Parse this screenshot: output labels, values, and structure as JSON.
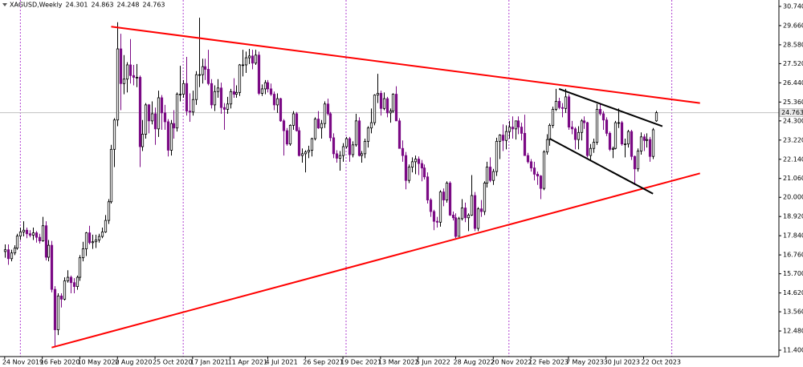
{
  "chart_data": {
    "type": "candlestick",
    "title": "XAGUSD,Weekly",
    "up_color": "#ffffff",
    "down_color": "#7b0a85",
    "outline_color": "#000000",
    "separator_color": "#b040d0",
    "price_line_color": "#c0c0c0",
    "xlim": [
      -1.5,
      247.2
    ],
    "ylim": [
      11.04,
      31.01
    ],
    "yticks": [
      {
        "value": 30.74,
        "label": "30.740"
      },
      {
        "value": 29.66,
        "label": "29.660"
      },
      {
        "value": 28.58,
        "label": "28.580"
      },
      {
        "value": 27.52,
        "label": "27.520"
      },
      {
        "value": 26.44,
        "label": "26.440"
      },
      {
        "value": 25.36,
        "label": "25.360"
      },
      {
        "value": 24.3,
        "label": "24.300"
      },
      {
        "value": 23.22,
        "label": "23.220"
      },
      {
        "value": 22.14,
        "label": "22.140"
      },
      {
        "value": 21.06,
        "label": "21.060"
      },
      {
        "value": 20,
        "label": "20.000"
      },
      {
        "value": 18.92,
        "label": "18.920"
      },
      {
        "value": 17.84,
        "label": "17.840"
      },
      {
        "value": 16.76,
        "label": "16.760"
      },
      {
        "value": 15.7,
        "label": "15.700"
      },
      {
        "value": 14.62,
        "label": "14.620"
      },
      {
        "value": 13.56,
        "label": "13.560"
      },
      {
        "value": 12.48,
        "label": "12.480"
      },
      {
        "value": 11.4,
        "label": "11.400"
      }
    ],
    "xticks": [
      {
        "value": 0,
        "label": "24 Nov 2019"
      },
      {
        "value": 12,
        "label": "16 Feb 2020"
      },
      {
        "value": 24,
        "label": "10 May 2020"
      },
      {
        "value": 36,
        "label": "2 Aug 2020"
      },
      {
        "value": 48,
        "label": "25 Oct 2020"
      },
      {
        "value": 60,
        "label": "17 Jan 2021"
      },
      {
        "value": 72,
        "label": "11 Apr 2021"
      },
      {
        "value": 84,
        "label": "4 Jul 2021"
      },
      {
        "value": 96,
        "label": "26 Sep 2021"
      },
      {
        "value": 108,
        "label": "19 Dec 2021"
      },
      {
        "value": 120,
        "label": "13 Mar 2022"
      },
      {
        "value": 132,
        "label": "5 Jun 2022"
      },
      {
        "value": 144,
        "label": "28 Aug 2022"
      },
      {
        "value": 156,
        "label": "20 Nov 2022"
      },
      {
        "value": 168,
        "label": "12 Feb 2023"
      },
      {
        "value": 180,
        "label": "7 May 2023"
      },
      {
        "value": 192,
        "label": "30 Jul 2023"
      },
      {
        "value": 204,
        "label": "22 Oct 2023"
      }
    ],
    "separators": [
      5,
      57,
      109,
      161,
      213
    ],
    "trendlines": [
      {
        "color": "#ff0000",
        "points": [
          [
            34,
            29.6
          ],
          [
            222,
            25.3
          ]
        ]
      },
      {
        "color": "#ff0000",
        "points": [
          [
            15,
            11.55
          ],
          [
            222,
            21.35
          ]
        ]
      },
      {
        "color": "#000000",
        "points": [
          [
            177,
            26.1
          ],
          [
            210,
            24.0
          ]
        ]
      },
      {
        "color": "#000000",
        "points": [
          [
            174,
            23.3
          ],
          [
            207,
            20.2
          ]
        ]
      }
    ],
    "ohlc": [
      [
        16.95,
        17.35,
        16.6,
        17.05
      ],
      [
        17.05,
        17.35,
        16.2,
        16.55
      ],
      [
        16.55,
        17.05,
        16.4,
        16.87
      ],
      [
        16.87,
        17.3,
        16.75,
        17.14
      ],
      [
        17.14,
        17.95,
        17.05,
        17.82
      ],
      [
        17.82,
        18.3,
        17.6,
        18.05
      ],
      [
        18.05,
        18.65,
        17.8,
        18.15
      ],
      [
        18.15,
        18.3,
        17.7,
        17.95
      ],
      [
        17.95,
        18.15,
        17.75,
        17.87
      ],
      [
        17.87,
        18.3,
        17.6,
        18.0
      ],
      [
        18.0,
        18.1,
        17.45,
        17.75
      ],
      [
        17.75,
        17.95,
        17.4,
        17.55
      ],
      [
        17.55,
        18.9,
        17.5,
        18.4
      ],
      [
        18.4,
        18.65,
        16.45,
        16.63
      ],
      [
        16.63,
        17.6,
        16.4,
        17.3
      ],
      [
        17.3,
        17.55,
        14.65,
        14.82
      ],
      [
        14.82,
        15.0,
        11.64,
        12.55
      ],
      [
        12.55,
        14.6,
        12.25,
        14.45
      ],
      [
        14.45,
        14.6,
        13.8,
        14.27
      ],
      [
        14.27,
        15.5,
        14.2,
        15.3
      ],
      [
        15.3,
        15.9,
        15.2,
        15.5
      ],
      [
        15.5,
        15.6,
        14.6,
        15.2
      ],
      [
        15.2,
        15.45,
        14.6,
        14.98
      ],
      [
        14.98,
        15.6,
        14.8,
        15.5
      ],
      [
        15.5,
        16.75,
        15.3,
        16.6
      ],
      [
        16.6,
        17.5,
        16.4,
        17.1
      ],
      [
        17.1,
        18.05,
        16.7,
        18.0
      ],
      [
        18.0,
        18.4,
        17.35,
        17.45
      ],
      [
        17.45,
        17.9,
        17.1,
        17.5
      ],
      [
        17.5,
        17.9,
        17.15,
        17.6
      ],
      [
        17.6,
        17.95,
        17.45,
        17.8
      ],
      [
        17.8,
        18.3,
        17.7,
        18.05
      ],
      [
        18.05,
        19.0,
        18.0,
        18.7
      ],
      [
        18.7,
        19.9,
        18.5,
        19.75
      ],
      [
        19.75,
        22.95,
        19.65,
        22.7
      ],
      [
        22.7,
        24.45,
        21.7,
        24.35
      ],
      [
        24.35,
        29.85,
        24.0,
        28.35
      ],
      [
        28.35,
        29.2,
        24.9,
        26.4
      ],
      [
        26.4,
        28.0,
        25.8,
        26.65
      ],
      [
        26.65,
        27.6,
        25.9,
        27.45
      ],
      [
        27.45,
        28.9,
        26.4,
        26.85
      ],
      [
        26.85,
        27.45,
        26.3,
        26.75
      ],
      [
        26.75,
        27.5,
        26.2,
        26.75
      ],
      [
        26.75,
        26.85,
        21.7,
        22.85
      ],
      [
        22.85,
        24.35,
        22.6,
        23.55
      ],
      [
        23.55,
        25.3,
        23.3,
        25.2
      ],
      [
        25.2,
        25.25,
        23.6,
        24.3
      ],
      [
        24.3,
        25.4,
        24.1,
        24.7
      ],
      [
        24.7,
        25.05,
        22.95,
        23.85
      ],
      [
        23.85,
        26.0,
        23.4,
        25.6
      ],
      [
        25.6,
        25.75,
        23.8,
        24.75
      ],
      [
        24.75,
        25.2,
        23.8,
        24.25
      ],
      [
        24.25,
        24.4,
        22.3,
        22.65
      ],
      [
        22.65,
        24.35,
        22.35,
        24.15
      ],
      [
        24.15,
        24.9,
        23.3,
        23.9
      ],
      [
        23.9,
        25.9,
        23.7,
        25.8
      ],
      [
        25.8,
        27.4,
        25.4,
        25.8
      ],
      [
        25.8,
        26.6,
        25.6,
        26.4
      ],
      [
        26.4,
        27.9,
        24.6,
        24.85
      ],
      [
        24.85,
        25.85,
        24.25,
        24.8
      ],
      [
        24.8,
        26.0,
        24.6,
        25.5
      ],
      [
        25.5,
        27.1,
        25.2,
        26.9
      ],
      [
        26.9,
        30.1,
        26.2,
        26.9
      ],
      [
        26.9,
        27.8,
        26.4,
        27.35
      ],
      [
        27.35,
        27.8,
        26.6,
        27.2
      ],
      [
        27.2,
        28.3,
        26.3,
        26.4
      ],
      [
        26.4,
        26.65,
        25.0,
        25.2
      ],
      [
        25.2,
        26.3,
        24.85,
        25.95
      ],
      [
        25.95,
        26.65,
        25.6,
        26.15
      ],
      [
        26.15,
        26.45,
        24.7,
        25.05
      ],
      [
        25.05,
        25.3,
        23.8,
        24.95
      ],
      [
        24.95,
        25.65,
        24.7,
        25.25
      ],
      [
        25.25,
        26.1,
        25.0,
        25.95
      ],
      [
        25.95,
        26.7,
        25.6,
        25.8
      ],
      [
        25.8,
        26.3,
        25.6,
        25.9
      ],
      [
        25.9,
        27.5,
        25.7,
        27.45
      ],
      [
        27.45,
        28.3,
        26.8,
        27.45
      ],
      [
        27.45,
        28.2,
        27.0,
        27.85
      ],
      [
        27.85,
        28.35,
        27.5,
        27.95
      ],
      [
        27.95,
        28.3,
        27.2,
        27.55
      ],
      [
        27.55,
        28.3,
        27.45,
        28.0
      ],
      [
        28.0,
        28.2,
        25.75,
        25.85
      ],
      [
        25.85,
        26.35,
        25.7,
        26.1
      ],
      [
        26.1,
        26.6,
        25.8,
        26.45
      ],
      [
        26.45,
        26.6,
        25.9,
        26.1
      ],
      [
        26.1,
        26.4,
        25.7,
        25.8
      ],
      [
        25.8,
        25.95,
        24.9,
        25.2
      ],
      [
        25.2,
        25.85,
        24.75,
        25.55
      ],
      [
        25.55,
        25.6,
        24.25,
        24.3
      ],
      [
        24.3,
        24.4,
        22.35,
        23.75
      ],
      [
        23.75,
        23.9,
        22.9,
        23.0
      ],
      [
        23.0,
        24.1,
        22.9,
        24.05
      ],
      [
        24.05,
        24.85,
        23.8,
        24.7
      ],
      [
        24.7,
        24.8,
        23.7,
        23.75
      ],
      [
        23.75,
        23.95,
        22.3,
        22.35
      ],
      [
        22.35,
        22.75,
        21.95,
        22.45
      ],
      [
        22.45,
        22.65,
        21.4,
        22.55
      ],
      [
        22.55,
        22.9,
        22.2,
        22.65
      ],
      [
        22.65,
        23.35,
        22.3,
        23.3
      ],
      [
        23.3,
        24.5,
        23.2,
        24.4
      ],
      [
        24.4,
        24.85,
        23.85,
        23.9
      ],
      [
        23.9,
        24.35,
        23.3,
        24.15
      ],
      [
        24.15,
        25.4,
        23.9,
        25.25
      ],
      [
        25.25,
        25.55,
        24.6,
        24.7
      ],
      [
        24.7,
        24.8,
        23.15,
        23.35
      ],
      [
        23.35,
        23.6,
        22.2,
        22.45
      ],
      [
        22.45,
        22.65,
        21.95,
        22.2
      ],
      [
        22.2,
        22.6,
        21.5,
        22.35
      ],
      [
        22.35,
        23.05,
        22.0,
        22.85
      ],
      [
        22.85,
        23.4,
        22.75,
        23.3
      ],
      [
        23.3,
        23.4,
        22.0,
        22.4
      ],
      [
        22.4,
        23.15,
        22.25,
        22.95
      ],
      [
        22.95,
        24.7,
        22.85,
        24.3
      ],
      [
        24.3,
        24.5,
        22.3,
        22.35
      ],
      [
        22.35,
        22.6,
        21.95,
        22.45
      ],
      [
        22.45,
        23.3,
        22.2,
        23.15
      ],
      [
        23.15,
        24.0,
        22.8,
        23.9
      ],
      [
        23.9,
        25.0,
        23.6,
        24.2
      ],
      [
        24.2,
        25.8,
        24.05,
        25.75
      ],
      [
        25.75,
        26.95,
        25.3,
        25.85
      ],
      [
        25.85,
        26.0,
        24.6,
        25.0
      ],
      [
        25.0,
        25.9,
        24.9,
        25.55
      ],
      [
        25.55,
        25.65,
        24.5,
        24.75
      ],
      [
        24.75,
        25.0,
        24.2,
        24.85
      ],
      [
        24.85,
        25.85,
        24.75,
        25.8
      ],
      [
        25.8,
        26.25,
        24.3,
        24.3
      ],
      [
        24.3,
        24.45,
        22.75,
        22.75
      ],
      [
        22.75,
        23.2,
        22.0,
        22.35
      ],
      [
        22.35,
        22.55,
        20.45,
        20.95
      ],
      [
        20.95,
        21.85,
        20.8,
        21.7
      ],
      [
        21.7,
        22.25,
        21.4,
        22.0
      ],
      [
        22.0,
        22.35,
        21.3,
        22.15
      ],
      [
        22.15,
        22.3,
        21.25,
        21.9
      ],
      [
        21.9,
        22.1,
        20.9,
        21.65
      ],
      [
        21.65,
        21.85,
        21.0,
        21.15
      ],
      [
        21.15,
        21.4,
        19.65,
        19.85
      ],
      [
        19.85,
        19.95,
        18.9,
        19.2
      ],
      [
        19.2,
        19.3,
        18.15,
        18.65
      ],
      [
        18.65,
        18.9,
        18.3,
        18.6
      ],
      [
        18.6,
        20.4,
        18.35,
        20.3
      ],
      [
        20.3,
        20.5,
        19.5,
        19.85
      ],
      [
        19.85,
        20.9,
        19.7,
        20.8
      ],
      [
        20.8,
        20.9,
        18.95,
        19.0
      ],
      [
        19.0,
        19.2,
        18.7,
        18.85
      ],
      [
        18.85,
        19.1,
        17.7,
        17.8
      ],
      [
        17.8,
        18.9,
        17.8,
        18.8
      ],
      [
        18.8,
        19.9,
        18.7,
        19.4
      ],
      [
        19.4,
        19.7,
        18.6,
        18.85
      ],
      [
        18.85,
        19.1,
        18.1,
        19.0
      ],
      [
        19.0,
        21.25,
        18.95,
        20.1
      ],
      [
        20.1,
        20.3,
        18.1,
        18.25
      ],
      [
        18.25,
        19.45,
        18.1,
        19.35
      ],
      [
        19.35,
        19.85,
        18.9,
        19.2
      ],
      [
        19.2,
        20.9,
        19.0,
        20.8
      ],
      [
        20.8,
        22.0,
        20.55,
        21.7
      ],
      [
        21.7,
        22.25,
        20.85,
        20.95
      ],
      [
        20.95,
        21.6,
        20.7,
        21.45
      ],
      [
        21.45,
        23.35,
        21.2,
        23.15
      ],
      [
        23.15,
        23.55,
        22.15,
        23.5
      ],
      [
        23.5,
        24.1,
        22.6,
        23.2
      ],
      [
        23.2,
        24.05,
        22.7,
        23.7
      ],
      [
        23.7,
        24.3,
        23.3,
        23.95
      ],
      [
        23.95,
        24.55,
        23.3,
        23.85
      ],
      [
        23.85,
        24.3,
        23.25,
        24.3
      ],
      [
        24.3,
        24.55,
        23.55,
        23.95
      ],
      [
        23.95,
        24.2,
        23.2,
        23.6
      ],
      [
        23.6,
        24.65,
        22.35,
        22.35
      ],
      [
        22.35,
        22.5,
        21.9,
        22.0
      ],
      [
        22.0,
        22.15,
        21.45,
        21.65
      ],
      [
        21.65,
        22.0,
        20.95,
        21.3
      ],
      [
        21.3,
        21.45,
        20.7,
        21.2
      ],
      [
        21.2,
        21.25,
        19.9,
        20.5
      ],
      [
        20.5,
        22.65,
        20.4,
        22.55
      ],
      [
        22.55,
        23.55,
        22.4,
        23.25
      ],
      [
        23.25,
        24.15,
        22.9,
        24.05
      ],
      [
        24.05,
        25.1,
        23.9,
        24.95
      ],
      [
        24.95,
        26.1,
        24.85,
        25.4
      ],
      [
        25.4,
        25.6,
        24.95,
        25.05
      ],
      [
        25.05,
        25.3,
        24.5,
        25.0
      ],
      [
        25.0,
        26.1,
        24.75,
        25.65
      ],
      [
        25.65,
        25.8,
        23.8,
        23.95
      ],
      [
        23.95,
        24.3,
        23.55,
        23.85
      ],
      [
        23.85,
        23.95,
        22.7,
        23.25
      ],
      [
        23.25,
        24.0,
        22.7,
        23.65
      ],
      [
        23.65,
        24.4,
        23.2,
        24.3
      ],
      [
        24.3,
        24.55,
        23.85,
        24.2
      ],
      [
        24.2,
        24.25,
        22.25,
        22.35
      ],
      [
        22.35,
        23.0,
        22.1,
        22.75
      ],
      [
        22.75,
        23.3,
        22.5,
        23.1
      ],
      [
        23.1,
        25.25,
        22.95,
        24.95
      ],
      [
        24.95,
        25.3,
        24.6,
        24.7
      ],
      [
        24.7,
        24.85,
        23.8,
        24.35
      ],
      [
        24.35,
        24.5,
        23.45,
        23.6
      ],
      [
        23.6,
        23.7,
        22.6,
        22.7
      ],
      [
        22.7,
        22.85,
        22.2,
        22.75
      ],
      [
        22.75,
        24.3,
        22.7,
        24.2
      ],
      [
        24.2,
        25.0,
        23.9,
        24.2
      ],
      [
        24.2,
        24.3,
        22.9,
        23.0
      ],
      [
        23.0,
        23.3,
        22.25,
        23.0
      ],
      [
        23.0,
        23.8,
        22.8,
        23.7
      ],
      [
        23.7,
        23.8,
        22.1,
        22.3
      ],
      [
        22.3,
        22.35,
        20.7,
        21.6
      ],
      [
        21.6,
        22.75,
        21.45,
        22.6
      ],
      [
        22.6,
        23.65,
        22.4,
        23.4
      ],
      [
        23.4,
        23.55,
        22.6,
        23.2
      ],
      [
        23.2,
        23.6,
        22.8,
        23.25
      ],
      [
        23.25,
        23.4,
        22.0,
        22.3
      ],
      [
        22.3,
        23.9,
        22.15,
        23.8
      ],
      [
        24.301,
        24.863,
        24.248,
        24.763
      ]
    ]
  }
}
